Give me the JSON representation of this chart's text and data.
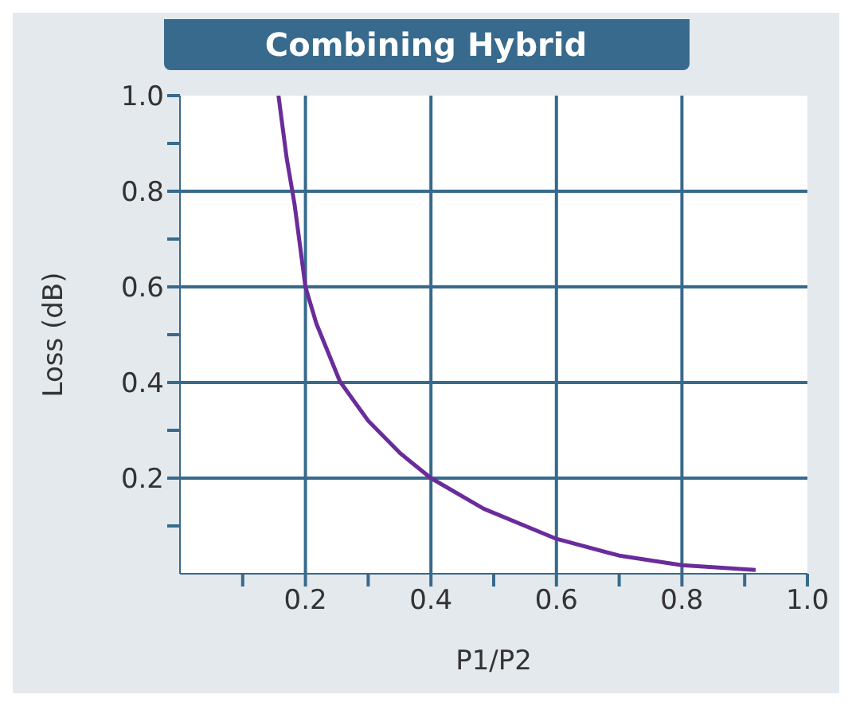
{
  "chart_data": {
    "type": "line",
    "title": "Combining Hybrid",
    "xlabel": "P1/P2",
    "ylabel": "Loss (dB)",
    "x": [
      0.157,
      0.17,
      0.1825,
      0.2,
      0.2175,
      0.255,
      0.3,
      0.351,
      0.4,
      0.484,
      0.6,
      0.7,
      0.8,
      0.9175
    ],
    "series": [
      {
        "color": "#6a2c9a",
        "values": [
          1.0,
          0.87,
          0.774,
          0.6,
          0.523,
          0.402,
          0.32,
          0.252,
          0.2,
          0.136,
          0.073,
          0.038,
          0.018,
          0.008
        ]
      }
    ],
    "xlim": [
      0,
      1.0
    ],
    "ylim": [
      0,
      1.0
    ],
    "xticks": [
      {
        "value": 0.1,
        "label": null
      },
      0.2,
      {
        "value": 0.3,
        "label": null
      },
      0.4,
      {
        "value": 0.5,
        "label": null
      },
      0.6,
      {
        "value": 0.7,
        "label": null
      },
      0.8,
      {
        "value": 0.9,
        "label": null
      },
      {
        "value": 1,
        "label": "1.0"
      }
    ],
    "yticks": [
      {
        "value": 0.1,
        "label": null
      },
      0.2,
      {
        "value": 0.3,
        "label": null
      },
      0.4,
      {
        "value": 0.5,
        "label": null
      },
      0.6,
      {
        "value": 0.7,
        "label": null
      },
      0.8,
      {
        "value": 0.9,
        "label": null
      },
      {
        "value": 1,
        "label": "1.0"
      }
    ],
    "grid": true,
    "marker": "none",
    "line_style": "solid"
  }
}
